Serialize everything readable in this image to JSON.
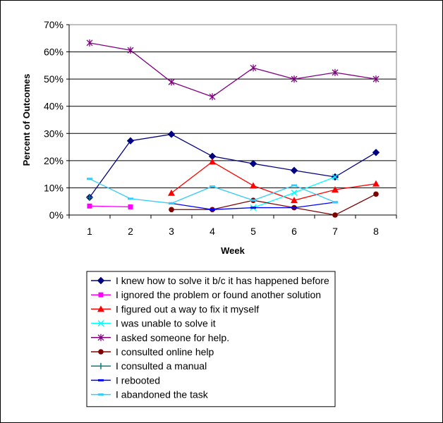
{
  "chart_data": {
    "type": "line",
    "title": "",
    "xlabel": "Week",
    "ylabel": "Percent of Outcomes",
    "x": [
      1,
      2,
      3,
      4,
      5,
      6,
      7,
      8
    ],
    "ylim": [
      0,
      70
    ],
    "yticks": [
      "0%",
      "10%",
      "20%",
      "30%",
      "40%",
      "50%",
      "60%",
      "70%"
    ],
    "grid": "horizontal",
    "legend": "bottom",
    "series": [
      {
        "name": "I knew how to solve it b/c it has happened before",
        "color": "#000080",
        "marker": "diamond",
        "values": [
          6.5,
          27.3,
          29.7,
          21.6,
          18.9,
          16.4,
          14.0,
          23.0
        ]
      },
      {
        "name": "I ignored the problem or found another solution",
        "color": "#FF00FF",
        "marker": "square",
        "values": [
          3.3,
          3.0,
          null,
          null,
          null,
          null,
          null,
          null
        ]
      },
      {
        "name": "I figured out a way to fix it myself",
        "color": "#FF0000",
        "marker": "triangle",
        "values": [
          null,
          null,
          8.1,
          19.6,
          10.8,
          5.4,
          9.3,
          11.5
        ]
      },
      {
        "name": "I was unable to solve it",
        "color": "#00FFFF",
        "marker": "x",
        "values": [
          null,
          null,
          null,
          null,
          2.7,
          8.2,
          14.0,
          null
        ]
      },
      {
        "name": "I asked someone for help.",
        "color": "#800080",
        "marker": "star",
        "values": [
          63.3,
          60.6,
          48.9,
          43.5,
          54.1,
          50.0,
          52.4,
          50.0
        ]
      },
      {
        "name": "I consulted online help",
        "color": "#800000",
        "marker": "circle",
        "values": [
          null,
          null,
          2.0,
          2.0,
          5.4,
          2.7,
          0.0,
          7.7
        ]
      },
      {
        "name": "I consulted a manual",
        "color": "#008080",
        "marker": "plus",
        "values": [
          6.5,
          null,
          null,
          null,
          null,
          null,
          null,
          null
        ]
      },
      {
        "name": "I rebooted",
        "color": "#0000FF",
        "marker": "dash",
        "values": [
          null,
          null,
          4.3,
          2.0,
          2.7,
          2.7,
          4.7,
          null
        ]
      },
      {
        "name": "I abandoned the task",
        "color": "#33CCFF",
        "marker": "dash",
        "values": [
          13.3,
          6.0,
          4.3,
          10.5,
          5.4,
          10.9,
          4.7,
          null
        ]
      }
    ]
  }
}
